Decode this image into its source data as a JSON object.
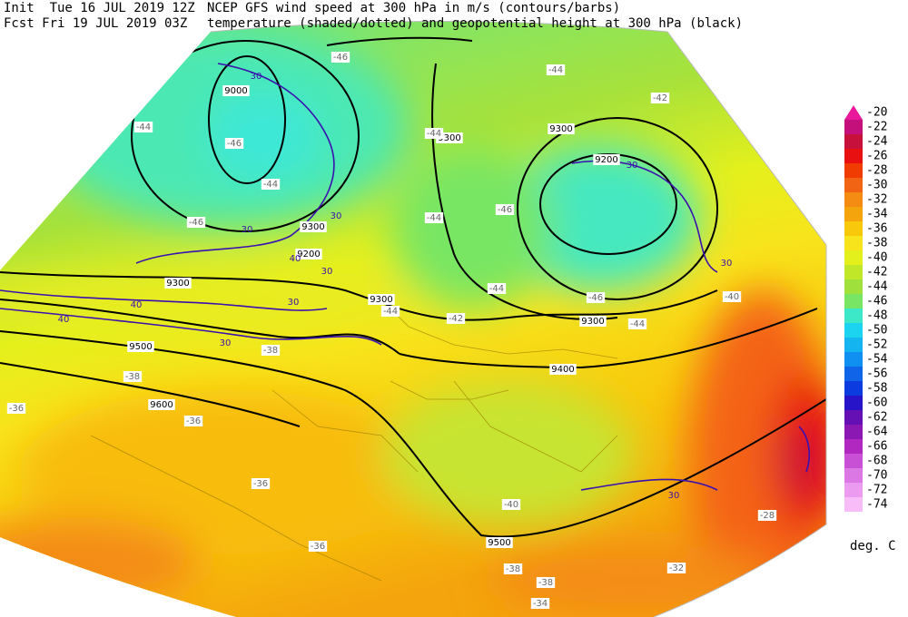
{
  "header": {
    "left": [
      "Init  Tue 16 JUL 2019 12Z",
      "Fcst Fri 19 JUL 2019 03Z"
    ],
    "right": [
      "NCEP GFS wind speed at 300 hPa in m/s (contours/barbs)",
      "temperature (shaded/dotted) and geopotential height at 300 hPa (black)"
    ]
  },
  "colorbar": {
    "unit": "deg. C",
    "ticks": [
      {
        "value": -20,
        "color": "#e8199a"
      },
      {
        "value": -22,
        "color": "#c4107a"
      },
      {
        "value": -24,
        "color": "#c8103c"
      },
      {
        "value": -26,
        "color": "#e81010"
      },
      {
        "value": -28,
        "color": "#f03c00"
      },
      {
        "value": -30,
        "color": "#f06414"
      },
      {
        "value": -32,
        "color": "#f48c14"
      },
      {
        "value": -34,
        "color": "#f4a40c"
      },
      {
        "value": -36,
        "color": "#f8c80c"
      },
      {
        "value": -38,
        "color": "#f8e41c"
      },
      {
        "value": -40,
        "color": "#e4f01c"
      },
      {
        "value": -42,
        "color": "#c0e828"
      },
      {
        "value": -44,
        "color": "#a0e03c"
      },
      {
        "value": -46,
        "color": "#78e664"
      },
      {
        "value": -48,
        "color": "#3ce8c8"
      },
      {
        "value": -50,
        "color": "#1cd4f0"
      },
      {
        "value": -52,
        "color": "#14b4f0"
      },
      {
        "value": -54,
        "color": "#1090f0"
      },
      {
        "value": -56,
        "color": "#1064e8"
      },
      {
        "value": -58,
        "color": "#0c3ce0"
      },
      {
        "value": -60,
        "color": "#2814c8"
      },
      {
        "value": -62,
        "color": "#6410b4"
      },
      {
        "value": -64,
        "color": "#8c18b4"
      },
      {
        "value": -66,
        "color": "#b028c0"
      },
      {
        "value": -68,
        "color": "#c850d4"
      },
      {
        "value": -70,
        "color": "#dc78e4"
      },
      {
        "value": -72,
        "color": "#ec9cf0"
      },
      {
        "value": -74,
        "color": "#f8bcf8"
      }
    ]
  },
  "map": {
    "height_labels": [
      9000,
      9200,
      9300,
      9300,
      9300,
      9200,
      9300,
      9300,
      9300,
      9400,
      9500,
      9600,
      9500
    ],
    "temperature_labels": [
      -46,
      -44,
      -42,
      -44,
      -46,
      -44,
      -44,
      -46,
      -44,
      -46,
      -44,
      -46,
      -44,
      -42,
      -44,
      -40,
      -38,
      -38,
      -36,
      -36,
      -36,
      -36,
      -38,
      -38,
      -40,
      -32,
      -34,
      -28
    ],
    "wind_labels": [
      30,
      30,
      30,
      30,
      30,
      30,
      40,
      40,
      30,
      30,
      30,
      40
    ]
  }
}
